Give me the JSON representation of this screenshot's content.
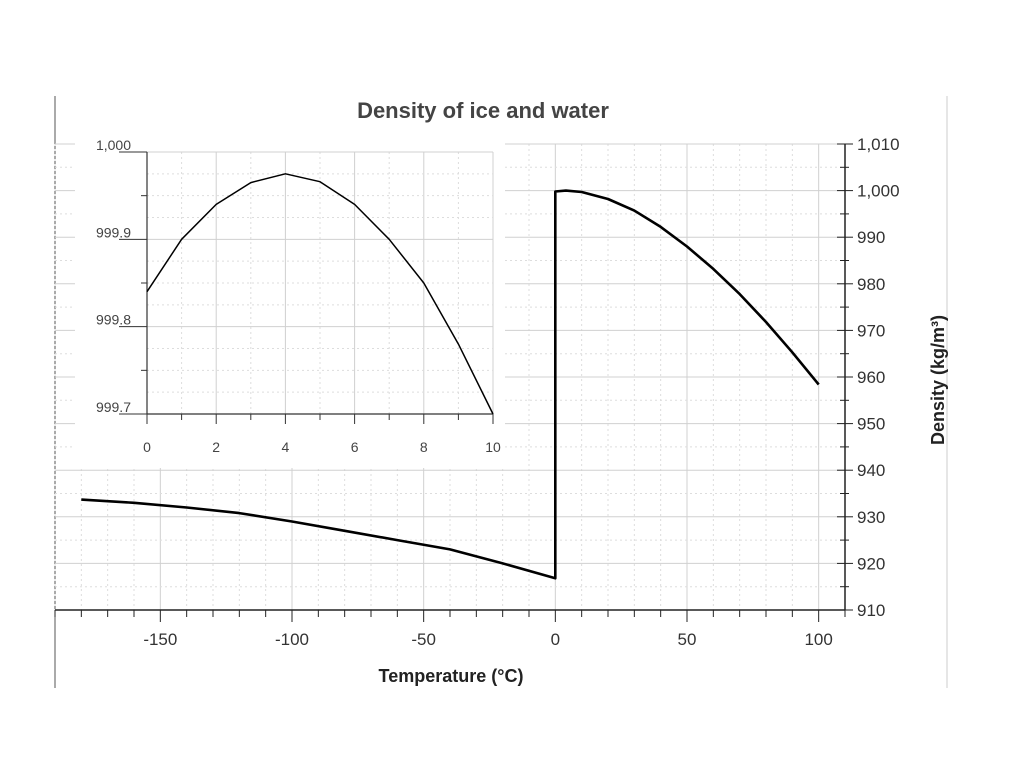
{
  "chart_data": [
    {
      "type": "line",
      "title": "Density of ice and water",
      "xlabel": "Temperature (°C)",
      "ylabel": "Density (kg/m³)",
      "xlim": [
        -190,
        110
      ],
      "ylim": [
        910,
        1010
      ],
      "x_ticks": [
        -150,
        -100,
        -50,
        0,
        50,
        100
      ],
      "x_tick_labels": [
        "-150",
        "-100",
        "-50",
        "0",
        "50",
        "100"
      ],
      "y_ticks": [
        910,
        920,
        930,
        940,
        950,
        960,
        970,
        980,
        990,
        1000,
        1010
      ],
      "y_tick_labels": [
        "910",
        "920",
        "930",
        "940",
        "950",
        "960",
        "970",
        "980",
        "990",
        "1,000",
        "1,010"
      ],
      "y_axis_side": "right",
      "grid": true,
      "series": [
        {
          "x": [
            -180,
            -160,
            -140,
            -120,
            -100,
            -80,
            -60,
            -40,
            -20,
            0,
            0,
            4,
            10,
            20,
            30,
            40,
            50,
            60,
            70,
            80,
            90,
            100
          ],
          "y": [
            933.7,
            933.0,
            932.0,
            930.8,
            929.0,
            927.0,
            925.0,
            923.0,
            920.0,
            916.8,
            999.8,
            1000.0,
            999.7,
            998.2,
            995.7,
            992.2,
            988.0,
            983.2,
            977.8,
            971.8,
            965.3,
            958.4
          ],
          "color": "#000000"
        }
      ]
    },
    {
      "type": "line",
      "title": "",
      "xlabel": "",
      "ylabel": "",
      "xlim": [
        0,
        10
      ],
      "ylim": [
        999.7,
        1000
      ],
      "x_ticks": [
        0,
        2,
        4,
        6,
        8,
        10
      ],
      "x_tick_labels": [
        "0",
        "2",
        "4",
        "6",
        "8",
        "10"
      ],
      "y_ticks": [
        999.7,
        999.8,
        999.9,
        1000
      ],
      "y_tick_labels": [
        "999.7",
        "999.8",
        "999.9",
        "1,000"
      ],
      "grid": true,
      "series": [
        {
          "x": [
            0,
            1,
            2,
            3,
            4,
            5,
            6,
            7,
            8,
            9,
            10
          ],
          "y": [
            999.84,
            999.9,
            999.94,
            999.965,
            999.975,
            999.966,
            999.94,
            999.9,
            999.85,
            999.78,
            999.7
          ],
          "color": "#000000"
        }
      ]
    }
  ]
}
